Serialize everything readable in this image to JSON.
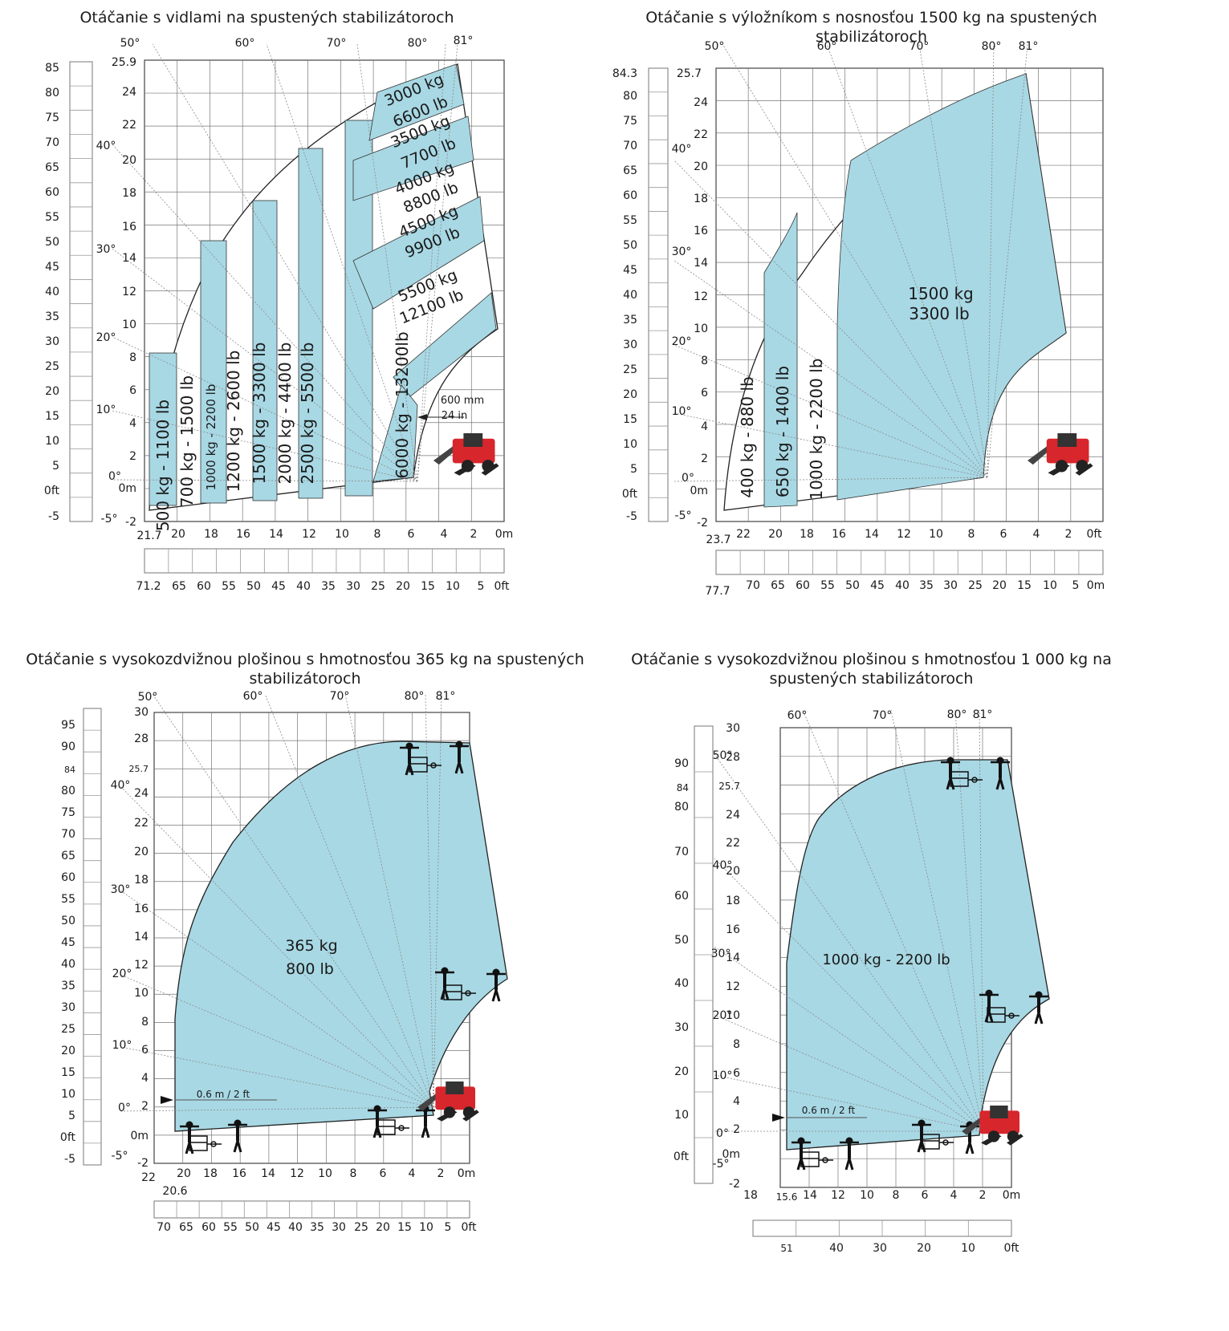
{
  "colors": {
    "fill": "#a8d8e4",
    "grid": "#555555",
    "machine_red": "#d7262c",
    "text": "#1a1a1a"
  },
  "chart_data": [
    {
      "type": "area",
      "title": "Otáčanie s vidlami na spustených stabilizátoroch",
      "reach_m_ticks": [
        "21.7",
        "20",
        "18",
        "16",
        "14",
        "12",
        "10",
        "8",
        "6",
        "4",
        "2",
        "0m"
      ],
      "reach_ft_ticks": [
        "71.2",
        "65",
        "60",
        "55",
        "50",
        "45",
        "40",
        "35",
        "30",
        "25",
        "20",
        "15",
        "10",
        "5",
        "0ft"
      ],
      "height_m_ticks": [
        "25.9",
        "24",
        "22",
        "20",
        "18",
        "16",
        "14",
        "12",
        "10",
        "8",
        "6",
        "4",
        "2",
        "0m",
        "-2"
      ],
      "height_ft_ticks": [
        "85",
        "80",
        "75",
        "70",
        "65",
        "60",
        "55",
        "50",
        "45",
        "40",
        "35",
        "30",
        "25",
        "20",
        "15",
        "10",
        "5",
        "0ft",
        "-5"
      ],
      "angles": [
        "50°",
        "60°",
        "70°",
        "80°",
        "81°",
        "40°",
        "30°",
        "20°",
        "10°",
        "0°",
        "-5°"
      ],
      "annotations": [
        "600 mm",
        "24 in"
      ],
      "load_zones": [
        "500 kg - 1100 lb",
        "700 kg - 1500 lb",
        "1000 kg - 2200 lb",
        "1200 kg - 2600 lb",
        "1500 kg - 3300 lb",
        "2000 kg - 4400 lb",
        "2500 kg - 5500 lb",
        "6000 kg - 13200lb",
        "5500 kg",
        "12100 lb",
        "4500 kg",
        "9900 lb",
        "4000 kg",
        "8800 lb",
        "3500 kg",
        "7700 lb",
        "3000 kg",
        "6600 lb"
      ]
    },
    {
      "type": "area",
      "title": "Otáčanie s výložníkom s nosnosťou 1500 kg na spustených stabilizátoroch",
      "reach_m_ticks": [
        "23.7",
        "22",
        "20",
        "18",
        "16",
        "14",
        "12",
        "10",
        "8",
        "6",
        "4",
        "2",
        "0ft"
      ],
      "reach_ft_ticks": [
        "77.7",
        "70",
        "65",
        "60",
        "55",
        "50",
        "45",
        "40",
        "35",
        "30",
        "25",
        "20",
        "15",
        "10",
        "5",
        "0m"
      ],
      "height_m_ticks": [
        "25.7",
        "24",
        "22",
        "20",
        "18",
        "16",
        "14",
        "12",
        "10",
        "8",
        "6",
        "4",
        "2",
        "0m",
        "-2"
      ],
      "height_ft_ticks": [
        "84.3",
        "80",
        "75",
        "70",
        "65",
        "60",
        "55",
        "50",
        "45",
        "40",
        "35",
        "30",
        "25",
        "20",
        "15",
        "10",
        "5",
        "0ft",
        "-5"
      ],
      "angles": [
        "50°",
        "60°",
        "70°",
        "80°",
        "81°",
        "40°",
        "30°",
        "20°",
        "10°",
        "0°",
        "-5°"
      ],
      "load_zones": [
        "400 kg - 880 lb",
        "650 kg - 1400 lb",
        "1000 kg - 2200 lb",
        "1500 kg",
        "3300 lb"
      ]
    },
    {
      "type": "area",
      "title": "Otáčanie s vysokozdvižnou plošinou s hmotnosťou 365 kg na spustených stabilizátoroch",
      "reach_m_ticks": [
        "22",
        "20.6",
        "20",
        "18",
        "16",
        "14",
        "12",
        "10",
        "8",
        "6",
        "4",
        "2",
        "0m"
      ],
      "reach_ft_ticks": [
        "70",
        "65",
        "60",
        "55",
        "50",
        "45",
        "40",
        "35",
        "30",
        "25",
        "20",
        "15",
        "10",
        "5",
        "0ft"
      ],
      "height_m_ticks": [
        "30",
        "28",
        "25.7",
        "24",
        "22",
        "20",
        "18",
        "16",
        "14",
        "12",
        "10",
        "8",
        "6",
        "4",
        "2",
        "0m",
        "-2"
      ],
      "height_ft_ticks": [
        "95",
        "90",
        "84",
        "80",
        "75",
        "70",
        "65",
        "60",
        "55",
        "50",
        "45",
        "40",
        "35",
        "30",
        "25",
        "20",
        "15",
        "10",
        "5",
        "0ft",
        "-5"
      ],
      "angles": [
        "50°",
        "60°",
        "70°",
        "80°",
        "81°",
        "40°",
        "30°",
        "20°",
        "10°",
        "0°",
        "-5°"
      ],
      "annotations": [
        "0.6 m / 2 ft"
      ],
      "load_zones": [
        "365 kg",
        "800 lb"
      ]
    },
    {
      "type": "area",
      "title": "Otáčanie s vysokozdvižnou plošinou s hmotnosťou 1 000 kg na spustených stabilizátoroch",
      "reach_m_ticks": [
        "18",
        "15.6",
        "14",
        "12",
        "10",
        "8",
        "6",
        "4",
        "2",
        "0m"
      ],
      "reach_ft_ticks": [
        "51",
        "40",
        "30",
        "20",
        "10",
        "0ft"
      ],
      "height_m_ticks": [
        "30",
        "28",
        "25.7",
        "24",
        "22",
        "20",
        "18",
        "16",
        "14",
        "12",
        "10",
        "8",
        "6",
        "4",
        "2",
        "0m",
        "-2"
      ],
      "height_ft_ticks": [
        "90",
        "84",
        "80",
        "70",
        "60",
        "50",
        "40",
        "30",
        "20",
        "10",
        "0ft"
      ],
      "angles": [
        "60°",
        "70°",
        "80°",
        "81°",
        "50°",
        "40°",
        "30°",
        "20°",
        "10°",
        "0°",
        "-5°"
      ],
      "annotations": [
        "0.6 m / 2 ft"
      ],
      "load_zones": [
        "1000 kg - 2200 lb"
      ]
    }
  ]
}
